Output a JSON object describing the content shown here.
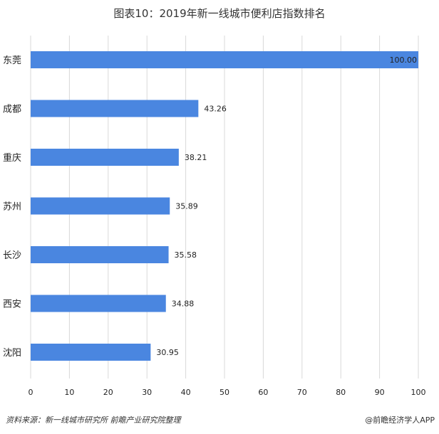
{
  "title": "图表10：2019年新一线城市便利店指数排名",
  "footer": {
    "source": "资料来源：新一线城市研究所 前瞻产业研究院整理",
    "brand": "@前瞻经济学人APP"
  },
  "chart_data": {
    "type": "bar",
    "orientation": "horizontal",
    "title": "图表10：2019年新一线城市便利店指数排名",
    "xlabel": "",
    "ylabel": "",
    "categories": [
      "东莞",
      "成都",
      "重庆",
      "苏州",
      "长沙",
      "西安",
      "沈阳"
    ],
    "values": [
      100.0,
      43.26,
      38.21,
      35.89,
      35.58,
      34.88,
      30.95
    ],
    "value_labels": [
      "100.00",
      "43.26",
      "38.21",
      "35.89",
      "35.58",
      "34.88",
      "30.95"
    ],
    "xlim": [
      0,
      100
    ],
    "xticks": [
      "0",
      "10",
      "20",
      "30",
      "40",
      "50",
      "60",
      "70",
      "80",
      "90",
      "100"
    ],
    "grid": true,
    "legend": "none",
    "bar_color": "#4a86e0"
  }
}
